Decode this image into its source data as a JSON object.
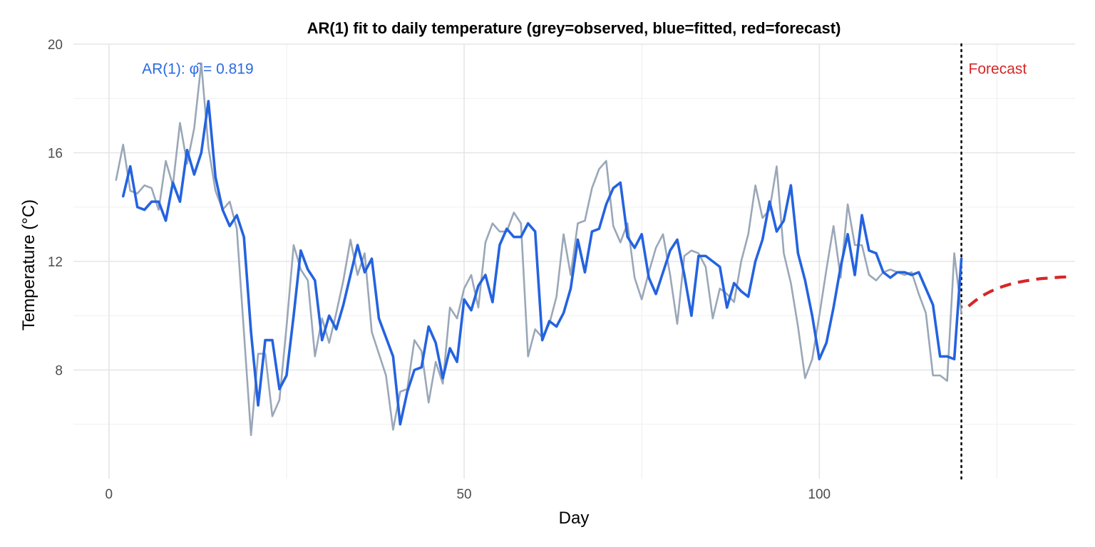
{
  "chart_data": {
    "type": "line",
    "title": "AR(1) fit to daily temperature (grey=observed, blue=fitted, red=forecast)",
    "xlabel": "Day",
    "ylabel": "Temperature (°C)",
    "xlim": [
      -5,
      136
    ],
    "ylim": [
      4.0,
      20.0
    ],
    "x_ticks": [
      0,
      50,
      100
    ],
    "x_tick_labels": [
      "0",
      "50",
      "100"
    ],
    "y_ticks": [
      8,
      12,
      16,
      20
    ],
    "y_tick_labels": [
      "8",
      "12",
      "16",
      "20"
    ],
    "grid": true,
    "legend": "none",
    "annotations": [
      {
        "text": "AR(1): φ̂ = 0.819",
        "x": 12.5,
        "y": 19.1,
        "color": "#2a6ae0"
      },
      {
        "text": "Forecast",
        "x": 121,
        "y": 19.1,
        "color": "#d62728"
      }
    ],
    "vline": {
      "x": 120,
      "style": "dotted",
      "color": "#000000"
    },
    "series": [
      {
        "key": "observed",
        "color": "#9aa7b8",
        "x": [
          1,
          2,
          3,
          4,
          5,
          6,
          7,
          8,
          9,
          10,
          11,
          12,
          13,
          14,
          15,
          16,
          17,
          18,
          19,
          20,
          21,
          22,
          23,
          24,
          25,
          26,
          27,
          28,
          29,
          30,
          31,
          32,
          33,
          34,
          35,
          36,
          37,
          38,
          39,
          40,
          41,
          42,
          43,
          44,
          45,
          46,
          47,
          48,
          49,
          50,
          51,
          52,
          53,
          54,
          55,
          56,
          57,
          58,
          59,
          60,
          61,
          62,
          63,
          64,
          65,
          66,
          67,
          68,
          69,
          70,
          71,
          72,
          73,
          74,
          75,
          76,
          77,
          78,
          79,
          80,
          81,
          82,
          83,
          84,
          85,
          86,
          87,
          88,
          89,
          90,
          91,
          92,
          93,
          94,
          95,
          96,
          97,
          98,
          99,
          100,
          101,
          102,
          103,
          104,
          105,
          106,
          107,
          108,
          109,
          110,
          111,
          112,
          113,
          114,
          115,
          116,
          117,
          118,
          119,
          120
        ],
        "values": [
          15.0,
          16.3,
          14.6,
          14.5,
          14.8,
          14.7,
          13.9,
          15.7,
          14.8,
          17.1,
          15.6,
          16.9,
          19.3,
          16.2,
          14.6,
          13.9,
          14.2,
          13.2,
          9.4,
          5.6,
          8.6,
          8.6,
          6.3,
          6.9,
          9.6,
          12.6,
          11.7,
          11.3,
          8.5,
          9.9,
          9.0,
          10.1,
          11.3,
          12.8,
          11.5,
          12.3,
          9.4,
          8.6,
          7.8,
          5.8,
          7.2,
          7.3,
          9.1,
          8.7,
          6.8,
          8.3,
          7.5,
          10.3,
          9.9,
          11.0,
          11.5,
          10.3,
          12.7,
          13.4,
          13.1,
          13.1,
          13.8,
          13.4,
          8.5,
          9.5,
          9.2,
          9.7,
          10.7,
          13.0,
          11.5,
          13.4,
          13.5,
          14.7,
          15.4,
          15.7,
          13.3,
          12.7,
          13.4,
          11.4,
          10.6,
          11.6,
          12.5,
          13.0,
          11.5,
          9.7,
          12.2,
          12.4,
          12.3,
          11.8,
          9.9,
          11.0,
          10.8,
          10.5,
          12.0,
          13.0,
          14.8,
          13.6,
          13.9,
          15.5,
          12.3,
          11.2,
          9.6,
          7.7,
          8.4,
          10.0,
          11.7,
          13.3,
          11.4,
          14.1,
          12.6,
          12.6,
          11.5,
          11.3,
          11.6,
          11.7,
          11.6,
          11.5,
          11.6,
          10.8,
          10.1,
          7.8,
          7.8,
          7.6,
          12.3,
          10.1
        ]
      },
      {
        "key": "fitted",
        "color": "#2463e0",
        "x": [
          2,
          3,
          4,
          5,
          6,
          7,
          8,
          9,
          10,
          11,
          12,
          13,
          14,
          15,
          16,
          17,
          18,
          19,
          20,
          21,
          22,
          23,
          24,
          25,
          26,
          27,
          28,
          29,
          30,
          31,
          32,
          33,
          34,
          35,
          36,
          37,
          38,
          39,
          40,
          41,
          42,
          43,
          44,
          45,
          46,
          47,
          48,
          49,
          50,
          51,
          52,
          53,
          54,
          55,
          56,
          57,
          58,
          59,
          60,
          61,
          62,
          63,
          64,
          65,
          66,
          67,
          68,
          69,
          70,
          71,
          72,
          73,
          74,
          75,
          76,
          77,
          78,
          79,
          80,
          81,
          82,
          83,
          84,
          85,
          86,
          87,
          88,
          89,
          90,
          91,
          92,
          93,
          94,
          95,
          96,
          97,
          98,
          99,
          100,
          101,
          102,
          103,
          104,
          105,
          106,
          107,
          108,
          109,
          110,
          111,
          112,
          113,
          114,
          115,
          116,
          117,
          118,
          119,
          120
        ],
        "values": [
          14.4,
          15.5,
          14.0,
          13.9,
          14.2,
          14.2,
          13.5,
          14.9,
          14.2,
          16.1,
          15.2,
          16.0,
          17.9,
          15.1,
          13.9,
          13.3,
          13.7,
          12.9,
          9.4,
          6.7,
          9.1,
          9.1,
          7.3,
          7.8,
          10.0,
          12.4,
          11.7,
          11.3,
          9.1,
          10.0,
          9.5,
          10.4,
          11.5,
          12.6,
          11.6,
          12.1,
          9.9,
          9.2,
          8.5,
          6.0,
          7.2,
          8.0,
          8.1,
          9.6,
          9.0,
          7.7,
          8.8,
          8.3,
          10.6,
          10.2,
          11.1,
          11.5,
          10.5,
          12.6,
          13.2,
          12.9,
          12.9,
          13.4,
          13.1,
          9.1,
          9.8,
          9.6,
          10.1,
          11.0,
          12.8,
          11.6,
          13.1,
          13.2,
          14.1,
          14.7,
          14.9,
          12.9,
          12.5,
          13.0,
          11.4,
          10.8,
          11.6,
          12.4,
          12.8,
          11.5,
          10.0,
          12.2,
          12.2,
          12.0,
          11.8,
          10.3,
          11.2,
          10.9,
          10.7,
          12.0,
          12.8,
          14.2,
          13.1,
          13.5,
          14.8,
          12.3,
          11.3,
          10.0,
          8.4,
          9.0,
          10.3,
          11.8,
          13.0,
          11.5,
          13.7,
          12.4,
          12.3,
          11.6,
          11.4,
          11.6,
          11.6,
          11.5,
          11.6,
          11.0,
          10.4,
          8.5,
          8.5,
          8.4,
          12.1
        ]
      },
      {
        "key": "forecast",
        "color": "#d62728",
        "style": "dashed",
        "x": [
          121,
          122,
          123,
          124,
          125,
          126,
          127,
          128,
          129,
          130,
          131,
          132,
          133,
          134,
          135
        ],
        "values": [
          10.35,
          10.56,
          10.74,
          10.88,
          11.0,
          11.09,
          11.17,
          11.23,
          11.28,
          11.32,
          11.36,
          11.38,
          11.4,
          11.42,
          11.43
        ]
      }
    ]
  }
}
